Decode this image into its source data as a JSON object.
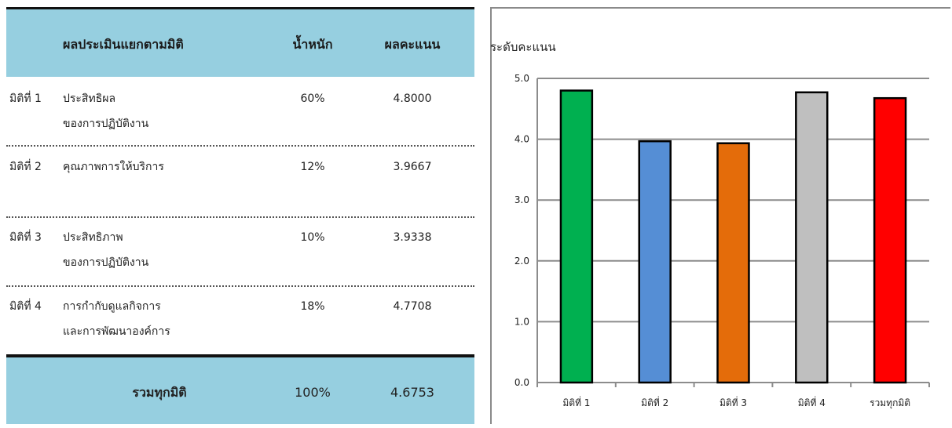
{
  "table": {
    "headers": [
      "ผลประเมินแยกตามมิติ",
      "น้ำหนัก",
      "ผลคะแนน"
    ],
    "rows": [
      {
        "dimension": "มิติที่ 1",
        "name_line1": "ประสิทธิผล",
        "name_line2": "ของการปฏิบัติงาน",
        "weight": "60%",
        "score": "4.8000"
      },
      {
        "dimension": "มิติที่ 2",
        "name_line1": "คุณภาพการให้บริการ",
        "name_line2": "",
        "weight": "12%",
        "score": "3.9667"
      },
      {
        "dimension": "มิติที่ 3",
        "name_line1": "ประสิทธิภาพ",
        "name_line2": "ของการปฏิบัติงาน",
        "weight": "10%",
        "score": "3.9338"
      },
      {
        "dimension": "มิติที่ 4",
        "name_line1": "การกำกับดูแลกิจการ",
        "name_line2": "และการพัฒนาองค์การ",
        "weight": "18%",
        "score": "4.7708"
      }
    ],
    "total": {
      "label": "รวมทุกมิติ",
      "weight": "100%",
      "score": "4.6753"
    },
    "colors": {
      "header_bg": "#96cfe0"
    }
  },
  "chart_data": {
    "type": "bar",
    "title": "ระดับคะแนน",
    "xlabel": "",
    "ylabel": "",
    "categories": [
      "มิติที่ 1",
      "มิติที่ 2",
      "มิติที่ 3",
      "มิติที่ 4",
      "รวมทุกมิติ"
    ],
    "values": [
      4.8,
      3.9667,
      3.9338,
      4.7708,
      4.6753
    ],
    "bar_colors": [
      "#00b050",
      "#558ed5",
      "#e46c0a",
      "#bfbfbf",
      "#ff0000"
    ],
    "ylim": [
      0,
      5
    ],
    "yticks": [
      "0.0",
      "1.0",
      "2.0",
      "3.0",
      "4.0",
      "5.0"
    ],
    "grid": true,
    "legend": "none"
  }
}
